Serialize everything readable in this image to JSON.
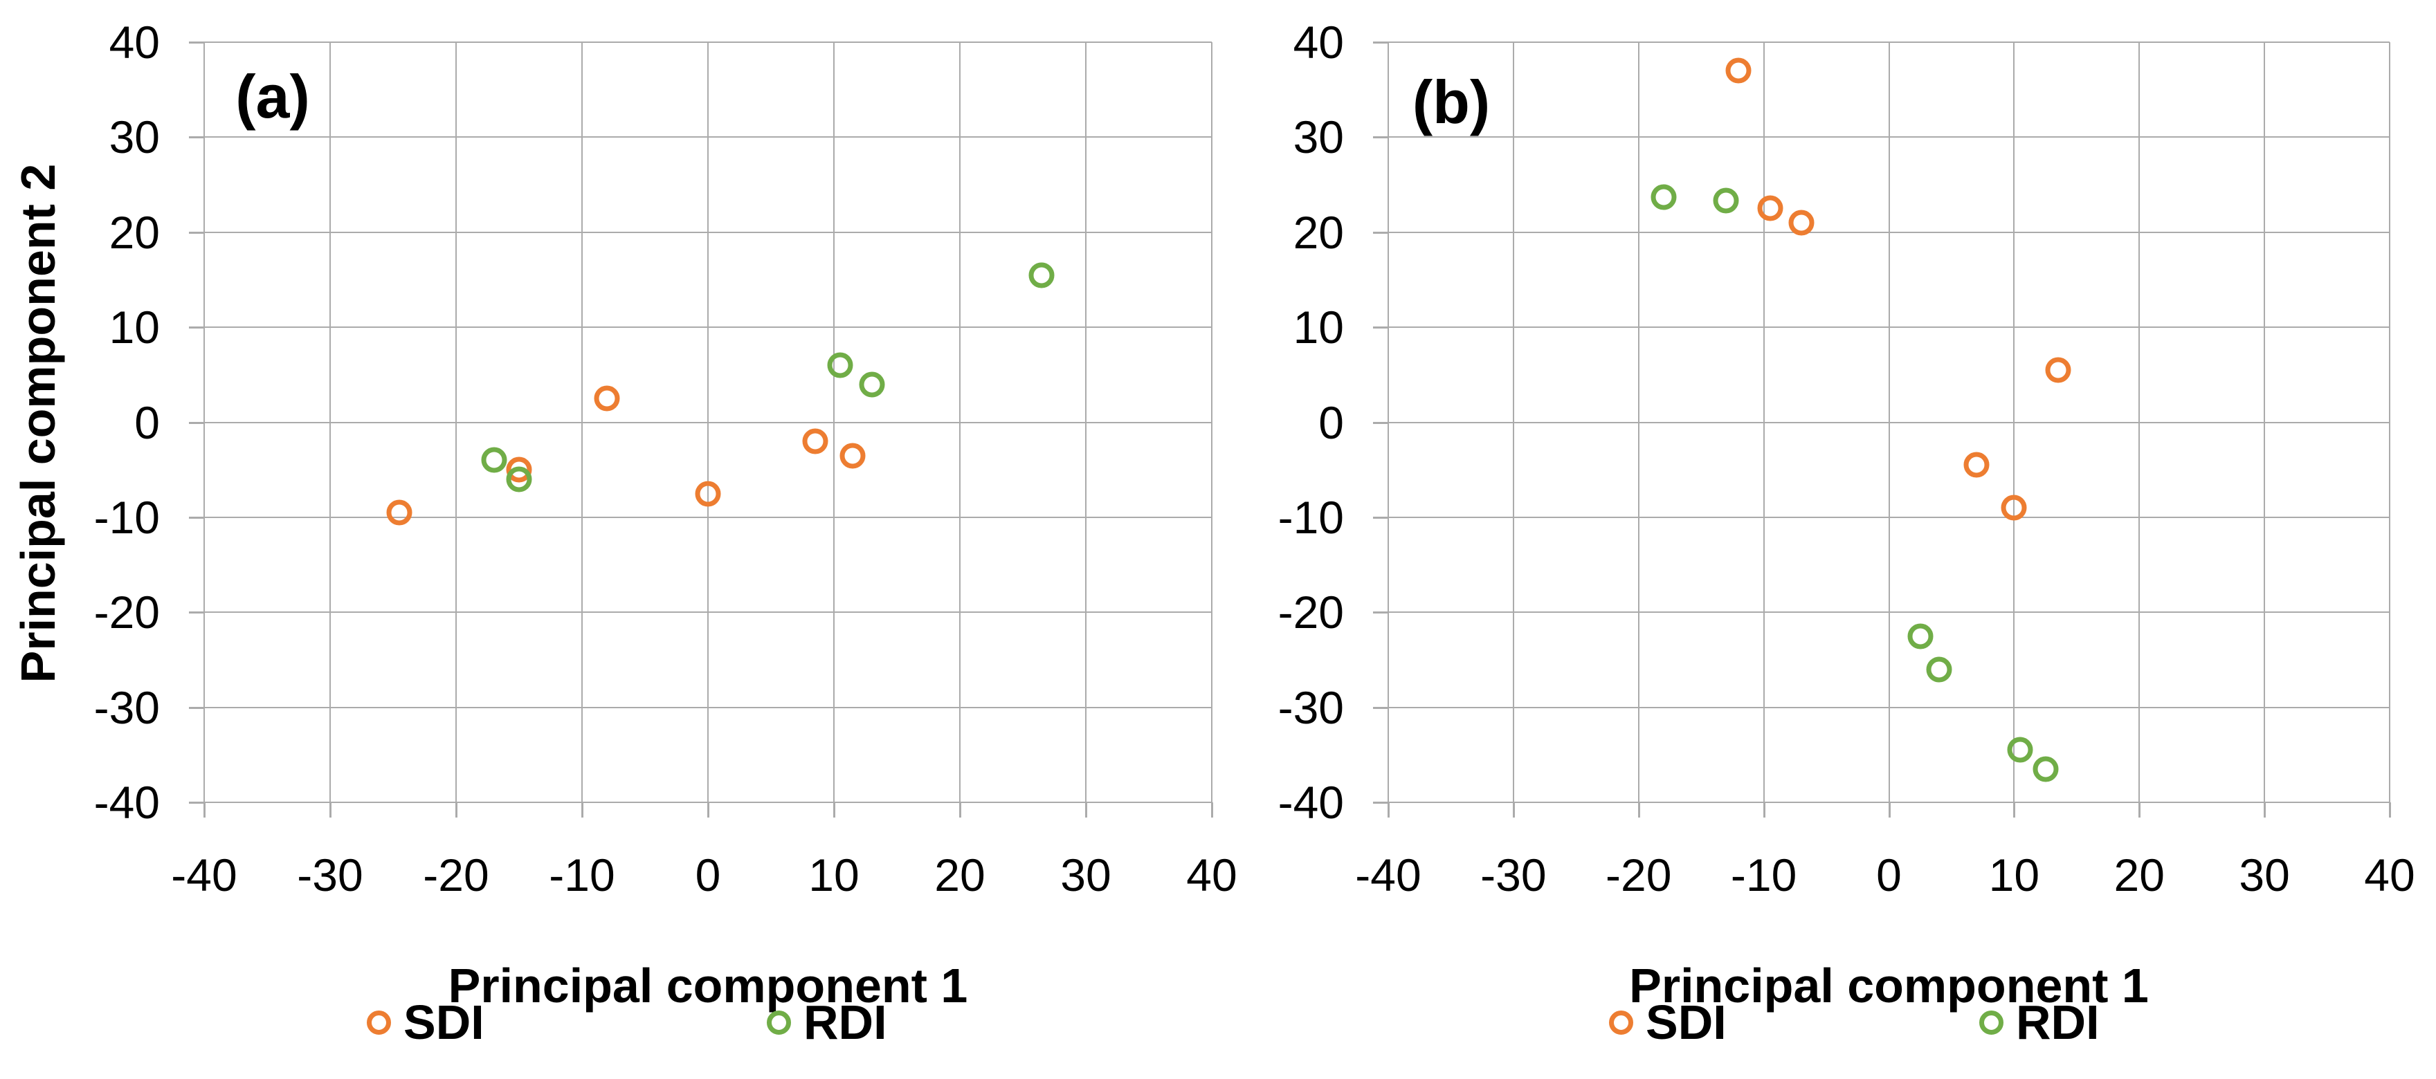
{
  "chart_data": [
    {
      "type": "scatter",
      "panel_label": "(a)",
      "xlabel": "Principal component 1",
      "ylabel": "Principal component 2",
      "xlim": [
        -40,
        40
      ],
      "ylim": [
        -40,
        40
      ],
      "xticks": [
        -40,
        -30,
        -20,
        -10,
        0,
        10,
        20,
        30,
        40
      ],
      "yticks": [
        40,
        30,
        20,
        10,
        0,
        -10,
        -20,
        -30,
        -40
      ],
      "grid": true,
      "legend_position": "bottom",
      "marker": "open-circle",
      "series": [
        {
          "name": "SDI",
          "color": "#ED7D31",
          "points": [
            [
              -24.5,
              -9.5
            ],
            [
              -15,
              -5
            ],
            [
              -8,
              2.5
            ],
            [
              0,
              -7.5
            ],
            [
              8.5,
              -2
            ],
            [
              11.5,
              -3.5
            ]
          ]
        },
        {
          "name": "RDI",
          "color": "#70AD47",
          "points": [
            [
              -17,
              -4
            ],
            [
              -15,
              -6
            ],
            [
              10.5,
              6
            ],
            [
              13,
              4
            ],
            [
              26.5,
              15.5
            ]
          ]
        }
      ]
    },
    {
      "type": "scatter",
      "panel_label": "(b)",
      "xlabel": "Principal component 1",
      "ylabel": "",
      "xlim": [
        -40,
        40
      ],
      "ylim": [
        -40,
        40
      ],
      "xticks": [
        -40,
        -30,
        -20,
        -10,
        0,
        10,
        20,
        30,
        40
      ],
      "yticks": [
        40,
        30,
        20,
        10,
        0,
        -10,
        -20,
        -30,
        -40
      ],
      "grid": true,
      "legend_position": "bottom",
      "marker": "open-circle",
      "series": [
        {
          "name": "SDI",
          "color": "#ED7D31",
          "points": [
            [
              -12,
              37
            ],
            [
              -9.5,
              22.5
            ],
            [
              -7,
              21
            ],
            [
              13.5,
              5.5
            ],
            [
              7,
              -4.5
            ],
            [
              10,
              -9
            ]
          ]
        },
        {
          "name": "RDI",
          "color": "#70AD47",
          "points": [
            [
              -18,
              23.7
            ],
            [
              -13,
              23.3
            ],
            [
              2.5,
              -22.5
            ],
            [
              4,
              -26
            ],
            [
              10.5,
              -34.5
            ],
            [
              12.5,
              -36.5
            ]
          ]
        }
      ]
    }
  ],
  "colors": {
    "sdi": "#ED7D31",
    "rdi": "#70AD47",
    "gridline": "#ABABAB",
    "text": "#000000",
    "background": "#FFFFFF"
  }
}
